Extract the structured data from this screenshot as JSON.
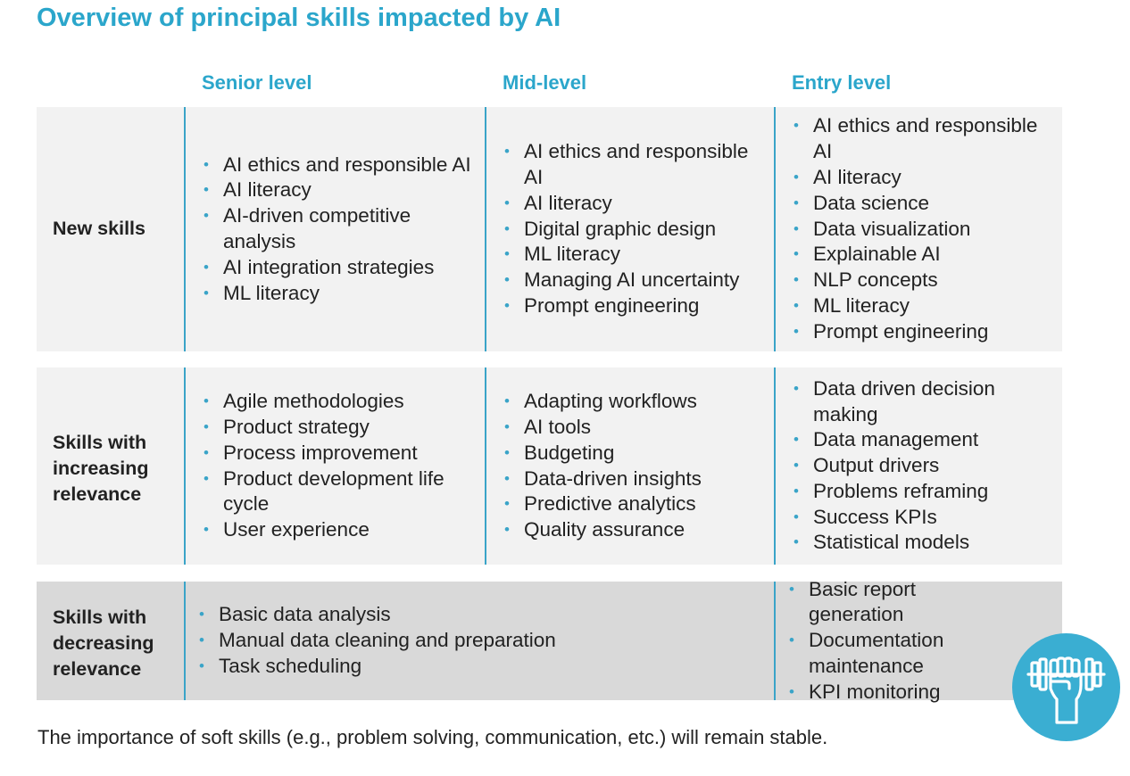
{
  "title": "Overview of principal skills impacted by AI",
  "columns": [
    "Senior level",
    "Mid-level",
    "Entry level"
  ],
  "rows": [
    {
      "label": "New skills",
      "senior": [
        "AI ethics and responsible AI",
        "AI literacy",
        "AI-driven competitive analysis",
        "AI integration strategies",
        "ML literacy"
      ],
      "mid": [
        "AI ethics and responsible AI",
        "AI literacy",
        "Digital graphic design",
        "ML literacy",
        "Managing AI uncertainty",
        "Prompt engineering"
      ],
      "entry": [
        "AI ethics and responsible AI",
        "AI literacy",
        "Data science",
        "Data visualization",
        "Explainable AI",
        "NLP concepts",
        "ML literacy",
        "Prompt engineering"
      ]
    },
    {
      "label": "Skills with increasing relevance",
      "senior": [
        "Agile methodologies",
        "Product strategy",
        "Process improvement",
        "Product development life cycle",
        "User experience"
      ],
      "mid": [
        "Adapting workflows",
        "AI tools",
        "Budgeting",
        "Data-driven insights",
        "Predictive analytics",
        "Quality assurance"
      ],
      "entry": [
        "Data driven decision making",
        "Data management",
        "Output drivers",
        "Problems reframing",
        "Success KPIs",
        "Statistical models"
      ]
    },
    {
      "label": "Skills with decreasing relevance",
      "senior_mid": [
        "Basic data analysis",
        "Manual data cleaning and preparation",
        "Task scheduling"
      ],
      "entry": [
        "Basic report generation",
        "Documentation maintenance",
        "KPI monitoring"
      ]
    }
  ],
  "footer": "The importance of soft skills (e.g., problem solving, communication, etc.) will remain stable.",
  "icon": "fist-with-dumbbell-icon",
  "colors": {
    "accent": "#2ba6cb",
    "band_light": "#f2f2f2",
    "band_dark": "#d9d9d9"
  }
}
